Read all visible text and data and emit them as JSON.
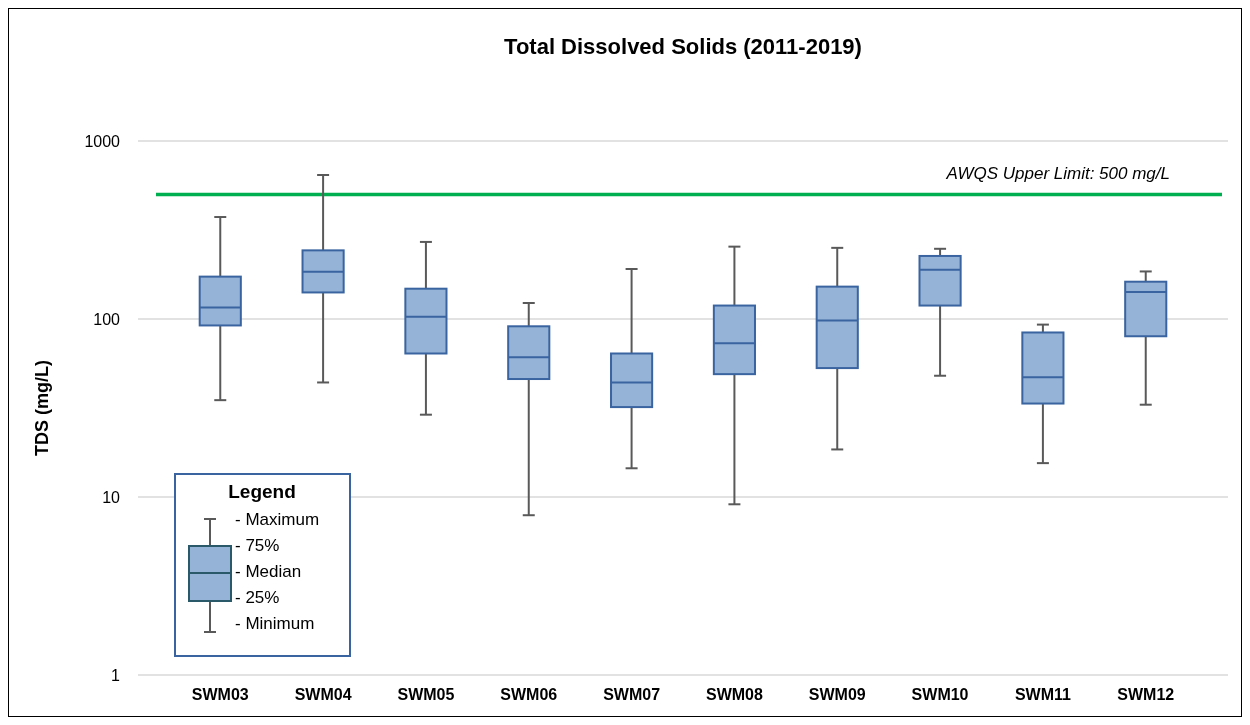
{
  "chart_data": {
    "type": "box",
    "title": "Total Dissolved Solids (2011-2019)",
    "ylabel": "TDS (mg/L)",
    "categories": [
      "SWM03",
      "SWM04",
      "SWM05",
      "SWM06",
      "SWM07",
      "SWM08",
      "SWM09",
      "SWM10",
      "SWM11",
      "SWM12"
    ],
    "boxes": [
      {
        "low": 35,
        "q1": 92,
        "median": 116,
        "q3": 173,
        "high": 374
      },
      {
        "low": 44,
        "q1": 141,
        "median": 184,
        "q3": 243,
        "high": 644
      },
      {
        "low": 29,
        "q1": 64,
        "median": 103,
        "q3": 148,
        "high": 271
      },
      {
        "low": 7.9,
        "q1": 46,
        "median": 61,
        "q3": 91,
        "high": 123
      },
      {
        "low": 14.5,
        "q1": 32,
        "median": 44,
        "q3": 64,
        "high": 191
      },
      {
        "low": 9.1,
        "q1": 49,
        "median": 73,
        "q3": 119,
        "high": 255
      },
      {
        "low": 18.5,
        "q1": 53,
        "median": 98,
        "q3": 152,
        "high": 251
      },
      {
        "low": 48,
        "q1": 119,
        "median": 189,
        "q3": 226,
        "high": 248
      },
      {
        "low": 15.5,
        "q1": 33.5,
        "median": 47,
        "q3": 84,
        "high": 93
      },
      {
        "low": 33,
        "q1": 80,
        "median": 142,
        "q3": 162,
        "high": 185
      }
    ],
    "color": "#95b3d7",
    "ylim": [
      1,
      1000
    ],
    "yticks": [
      1,
      10,
      100,
      1000
    ],
    "log": true,
    "grid": "y",
    "ref_lines": [
      {
        "axis": "y",
        "value": 500,
        "label": "AWQS Upper Limit: 500 mg/L",
        "color": "#00b050"
      }
    ],
    "legend_title": "Legend",
    "annotations": [
      "- Maximum",
      "- 75%",
      "- Median",
      "- 25%",
      "- Minimum"
    ]
  }
}
